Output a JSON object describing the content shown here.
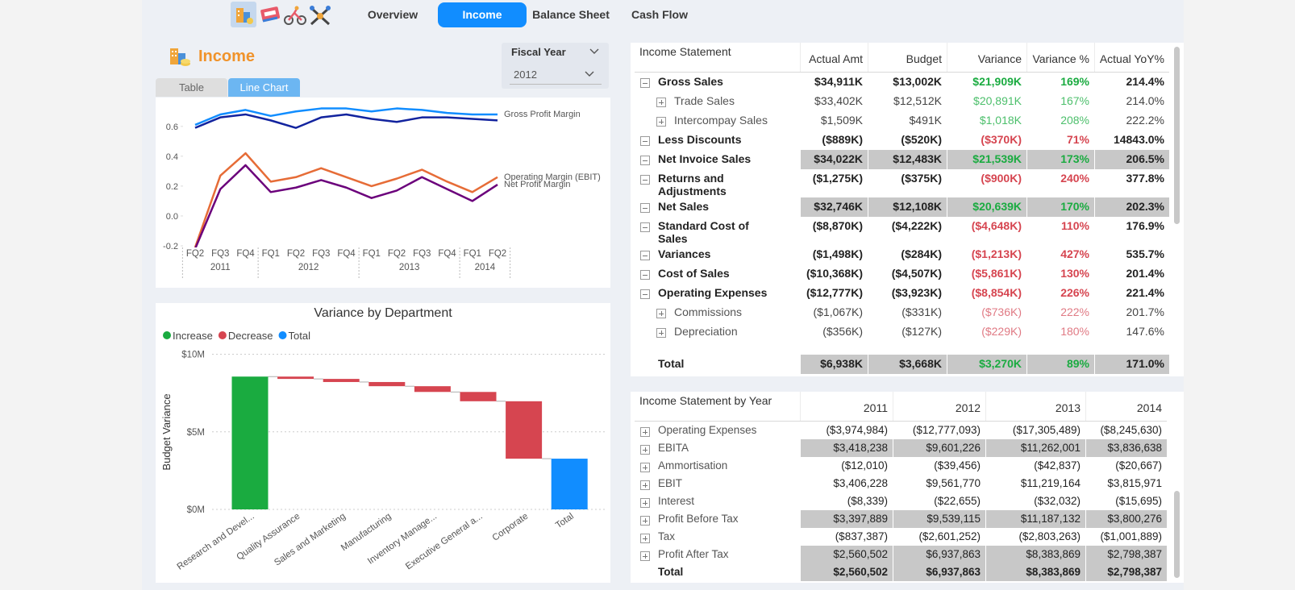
{
  "nav": {
    "tabs": [
      "Overview",
      "Income",
      "Balance Sheet",
      "Cash Flow"
    ],
    "active": 1
  },
  "header": {
    "title": "Income",
    "filter_label": "Fiscal Year",
    "filter_value": "2012",
    "view_toggle": [
      "Table",
      "Line Chart"
    ],
    "active_view": 1
  },
  "chart_data": [
    {
      "type": "line",
      "categories": [
        "FQ2",
        "FQ3",
        "FQ4",
        "FQ1",
        "FQ2",
        "FQ3",
        "FQ4",
        "FQ1",
        "FQ2",
        "FQ3",
        "FQ4",
        "FQ1",
        "FQ2"
      ],
      "group_labels": [
        "2011",
        "2012",
        "2013",
        "2014"
      ],
      "group_sizes": [
        3,
        4,
        4,
        2
      ],
      "series": [
        {
          "name": "Gross Profit Margin",
          "color": "#118dff",
          "values": [
            0.61,
            0.68,
            0.71,
            0.67,
            0.7,
            0.72,
            0.72,
            0.7,
            0.72,
            0.71,
            0.69,
            0.68,
            0.68
          ]
        },
        {
          "name": null,
          "color": "#12239e",
          "values": [
            0.59,
            0.66,
            0.68,
            0.64,
            0.59,
            0.66,
            0.68,
            0.65,
            0.63,
            0.66,
            0.66,
            0.65,
            0.64
          ]
        },
        {
          "name": "Operating Margin (EBIT)",
          "color": "#e66c37",
          "values": [
            -0.21,
            0.27,
            0.42,
            0.23,
            0.26,
            0.32,
            0.26,
            0.2,
            0.25,
            0.31,
            0.23,
            0.16,
            0.26
          ]
        },
        {
          "name": "Net Profit Margin",
          "color": "#6b007b",
          "values": [
            -0.22,
            0.18,
            0.34,
            0.16,
            0.19,
            0.24,
            0.19,
            0.12,
            0.17,
            0.26,
            0.18,
            0.1,
            0.21
          ]
        }
      ],
      "ylim": [
        -0.2,
        0.75
      ],
      "yticks": [
        -0.2,
        {
          "value": 0,
          "label": "0.0"
        },
        0.2,
        0.4,
        0.6
      ]
    },
    {
      "type": "waterfall",
      "title": "Variance by Department",
      "ylabel": "Budget Variance",
      "legend": [
        {
          "name": "Increase",
          "color": "#1aab40"
        },
        {
          "name": "Decrease",
          "color": "#d64550"
        },
        {
          "name": "Total",
          "color": "#118dff"
        }
      ],
      "categories": [
        "Research and Devel...",
        "Quality Assurance",
        "Sales and Marketing",
        "Manufacturing",
        "Inventory Manage...",
        "Executive General a...",
        "Corporate",
        "Total"
      ],
      "values": [
        8560000,
        -150000,
        -200000,
        -270000,
        -370000,
        -600000,
        -3700000,
        3270000
      ],
      "is_total": [
        false,
        false,
        false,
        false,
        false,
        false,
        false,
        true
      ],
      "ylim": [
        0,
        10000000
      ],
      "yticks": [
        {
          "value": 0,
          "label": "$0M"
        },
        {
          "value": 5000000,
          "label": "$5M"
        },
        {
          "value": 10000000,
          "label": "$10M"
        }
      ],
      "grid": true
    }
  ],
  "income_statement": {
    "columns": [
      "Income Statement",
      "Actual Amt",
      "Budget",
      "Variance",
      "Variance %",
      "Actual YoY%"
    ],
    "rows": [
      {
        "label": "Gross Sales",
        "level": 0,
        "bold": true,
        "highlight": false,
        "expander": "minus",
        "variance_color": "#1aab40",
        "cells": [
          "$34,911K",
          "$13,002K",
          "$21,909K",
          "169%",
          "214.4%"
        ]
      },
      {
        "label": "Trade Sales",
        "level": 1,
        "bold": false,
        "highlight": false,
        "expander": "plus",
        "variance_color": "#4cbf6b",
        "cells": [
          "$33,402K",
          "$12,512K",
          "$20,891K",
          "167%",
          "214.0%"
        ]
      },
      {
        "label": "Intercompay Sales",
        "level": 1,
        "bold": false,
        "highlight": false,
        "expander": "plus",
        "variance_color": "#4cbf6b",
        "cells": [
          "$1,509K",
          "$491K",
          "$1,018K",
          "208%",
          "222.2%"
        ]
      },
      {
        "label": "Less Discounts",
        "level": 0,
        "bold": true,
        "highlight": false,
        "expander": "minus",
        "variance_color": "#d64550",
        "cells": [
          "($889K)",
          "($520K)",
          "($370K)",
          "71%",
          "14843.0%"
        ]
      },
      {
        "label": "Net Invoice Sales",
        "level": 0,
        "bold": true,
        "highlight": true,
        "expander": "minus",
        "variance_color": "#1aab40",
        "cells": [
          "$34,022K",
          "$12,483K",
          "$21,539K",
          "173%",
          "206.5%"
        ]
      },
      {
        "label": "Returns and Adjustments",
        "level": 0,
        "bold": true,
        "highlight": false,
        "expander": "minus",
        "variance_color": "#d64550",
        "cells": [
          "($1,275K)",
          "($375K)",
          "($900K)",
          "240%",
          "377.8%"
        ]
      },
      {
        "label": "Net Sales",
        "level": 0,
        "bold": true,
        "highlight": true,
        "expander": "minus",
        "variance_color": "#1aab40",
        "cells": [
          "$32,746K",
          "$12,108K",
          "$20,639K",
          "170%",
          "202.3%"
        ]
      },
      {
        "label": "Standard Cost of Sales",
        "level": 0,
        "bold": true,
        "highlight": false,
        "expander": "minus",
        "variance_color": "#d64550",
        "cells": [
          "($8,870K)",
          "($4,222K)",
          "($4,648K)",
          "110%",
          "176.9%"
        ]
      },
      {
        "label": "Variances",
        "level": 0,
        "bold": true,
        "highlight": false,
        "expander": "minus",
        "variance_color": "#d64550",
        "cells": [
          "($1,498K)",
          "($284K)",
          "($1,213K)",
          "427%",
          "535.7%"
        ]
      },
      {
        "label": "Cost of Sales",
        "level": 0,
        "bold": true,
        "highlight": false,
        "expander": "minus",
        "variance_color": "#d64550",
        "cells": [
          "($10,368K)",
          "($4,507K)",
          "($5,861K)",
          "130%",
          "201.4%"
        ]
      },
      {
        "label": "Operating Expenses",
        "level": 0,
        "bold": true,
        "highlight": false,
        "expander": "minus",
        "variance_color": "#d64550",
        "cells": [
          "($12,777K)",
          "($3,923K)",
          "($8,854K)",
          "226%",
          "221.4%"
        ]
      },
      {
        "label": "Commissions",
        "level": 1,
        "bold": false,
        "highlight": false,
        "expander": "plus",
        "variance_color": "#e07a84",
        "cells": [
          "($1,067K)",
          "($331K)",
          "($736K)",
          "222%",
          "201.7%"
        ]
      },
      {
        "label": "Depreciation",
        "level": 1,
        "bold": false,
        "highlight": false,
        "expander": "plus",
        "variance_color": "#e07a84",
        "cells": [
          "($356K)",
          "($127K)",
          "($229K)",
          "180%",
          "147.6%"
        ]
      }
    ],
    "total": {
      "label": "Total",
      "level": 0,
      "bold": true,
      "highlight": true,
      "expander": null,
      "variance_color": "#1aab40",
      "cells": [
        "$6,938K",
        "$3,668K",
        "$3,270K",
        "89%",
        "171.0%"
      ]
    }
  },
  "income_by_year": {
    "columns": [
      "Income Statement by Year",
      "2011",
      "2012",
      "2013",
      "2014"
    ],
    "rows": [
      {
        "label": "Operating Expenses",
        "bold": false,
        "highlight": false,
        "expander": "plus",
        "cells": [
          "($3,974,984)",
          "($12,777,093)",
          "($17,305,489)",
          "($8,245,630)"
        ]
      },
      {
        "label": "EBITA",
        "bold": false,
        "highlight": true,
        "expander": "plus",
        "cells": [
          "$3,418,238",
          "$9,601,226",
          "$11,262,001",
          "$3,836,638"
        ]
      },
      {
        "label": "Ammortisation",
        "bold": false,
        "highlight": false,
        "expander": "plus",
        "cells": [
          "($12,010)",
          "($39,456)",
          "($42,837)",
          "($20,667)"
        ]
      },
      {
        "label": "EBIT",
        "bold": false,
        "highlight": false,
        "expander": "plus",
        "cells": [
          "$3,406,228",
          "$9,561,770",
          "$11,219,164",
          "$3,815,971"
        ]
      },
      {
        "label": "Interest",
        "bold": false,
        "highlight": false,
        "expander": "plus",
        "cells": [
          "($8,339)",
          "($22,655)",
          "($32,032)",
          "($15,695)"
        ]
      },
      {
        "label": "Profit Before Tax",
        "bold": false,
        "highlight": true,
        "expander": "plus",
        "cells": [
          "$3,397,889",
          "$9,539,115",
          "$11,187,132",
          "$3,800,276"
        ]
      },
      {
        "label": "Tax",
        "bold": false,
        "highlight": false,
        "expander": "plus",
        "cells": [
          "($837,387)",
          "($2,601,252)",
          "($2,803,263)",
          "($1,001,889)"
        ]
      },
      {
        "label": "Profit After Tax",
        "bold": false,
        "highlight": true,
        "expander": "plus",
        "cells": [
          "$2,560,502",
          "$6,937,863",
          "$8,383,869",
          "$2,798,387"
        ]
      },
      {
        "label": "Total",
        "bold": true,
        "highlight": true,
        "expander": null,
        "cells": [
          "$2,560,502",
          "$6,937,863",
          "$8,383,869",
          "$2,798,387"
        ]
      }
    ]
  }
}
